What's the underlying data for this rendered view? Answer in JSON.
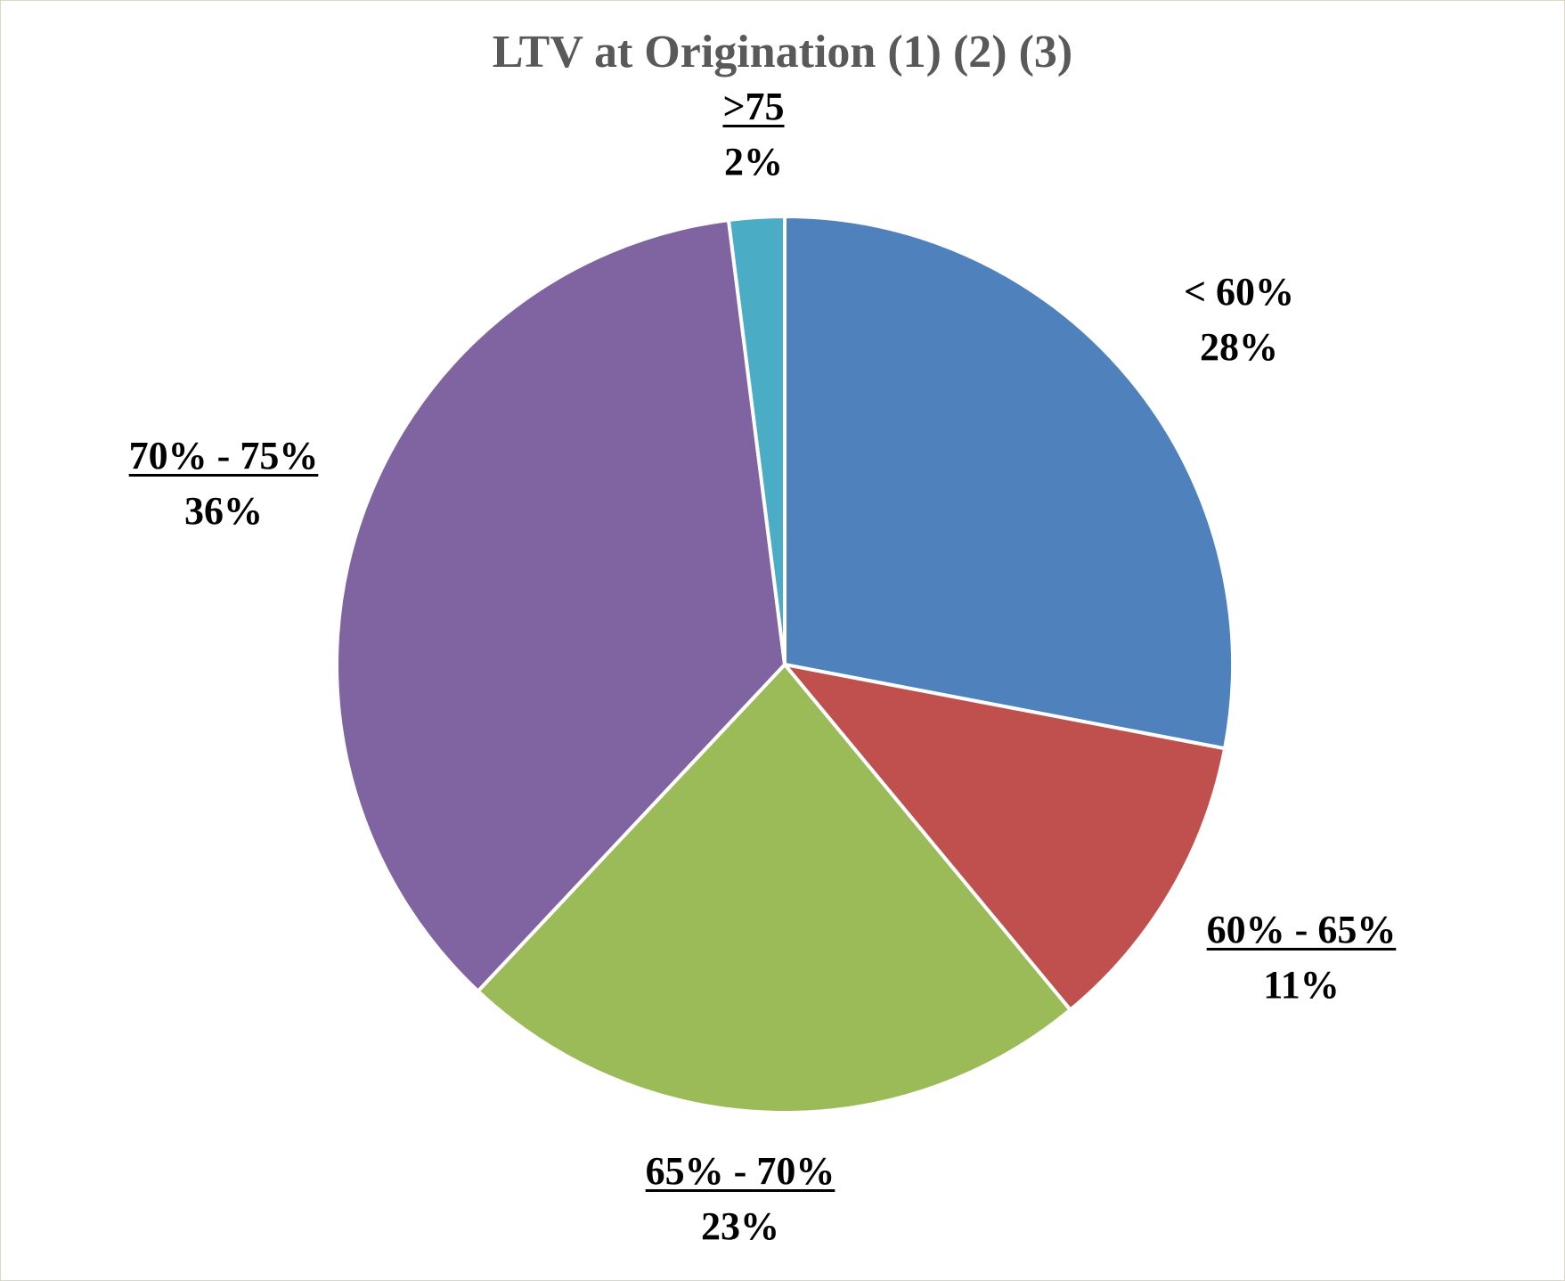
{
  "chart_data": {
    "type": "pie",
    "title": "LTV at Origination (1) (2) (3)",
    "categories": [
      "< 60%",
      "60% - 65%",
      "65% - 70%",
      "70% - 75%",
      ">75"
    ],
    "values": [
      28,
      11,
      23,
      36,
      2
    ],
    "labels": [
      "28%",
      "11%",
      "23%",
      "36%",
      "2%"
    ],
    "underlined": [
      false,
      true,
      true,
      true,
      true
    ],
    "colors": [
      "#4F81BD",
      "#C0504D",
      "#9BBB59",
      "#8064A2",
      "#4BACC6"
    ],
    "start_angle_deg": 0,
    "direction": "clockwise",
    "legend": "none"
  }
}
